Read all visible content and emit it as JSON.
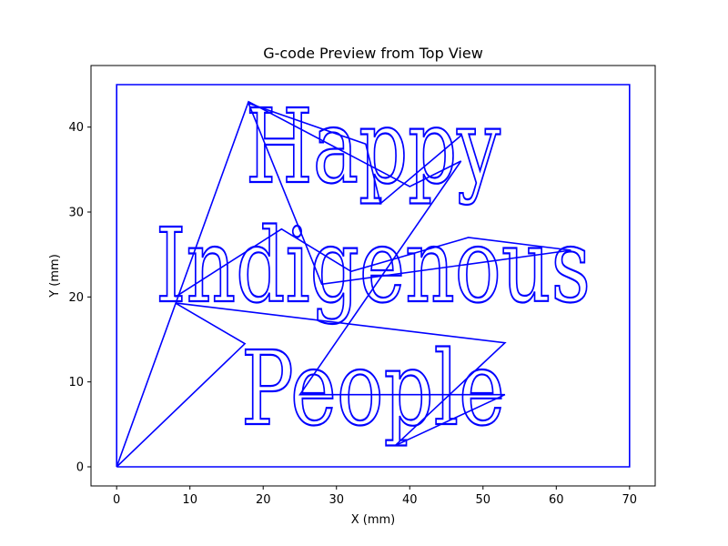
{
  "chart_data": {
    "type": "line",
    "title": "G-code Preview from Top View",
    "xlabel": "X (mm)",
    "ylabel": "Y (mm)",
    "xlim": [
      -3.5,
      73.5
    ],
    "ylim": [
      -2.25,
      47.25
    ],
    "xticks": [
      0,
      10,
      20,
      30,
      40,
      50,
      60,
      70
    ],
    "yticks": [
      0,
      10,
      20,
      30,
      40
    ],
    "grid": false,
    "line_color": "#0000ff",
    "series": [
      {
        "kind": "border",
        "x": [
          0,
          70,
          70,
          0,
          0
        ],
        "y": [
          0,
          0,
          45,
          45,
          0
        ]
      },
      {
        "kind": "travel-moves",
        "x": [
          0,
          17.5,
          8,
          53,
          38,
          53,
          46,
          25,
          47,
          40,
          18,
          0
        ],
        "y": [
          0,
          14.5,
          19.3,
          14.6,
          2.5,
          8.5,
          8.5,
          8.5,
          36,
          33,
          43,
          0
        ]
      },
      {
        "kind": "travel-moves",
        "x": [
          8,
          22.5,
          32,
          48,
          62,
          28,
          18,
          34,
          36,
          47
        ],
        "y": [
          20,
          28,
          23,
          27,
          25.5,
          21.5,
          42.8,
          38,
          31,
          39
        ]
      }
    ],
    "text_paths": [
      "Happy",
      "Indigenous",
      "People"
    ]
  }
}
